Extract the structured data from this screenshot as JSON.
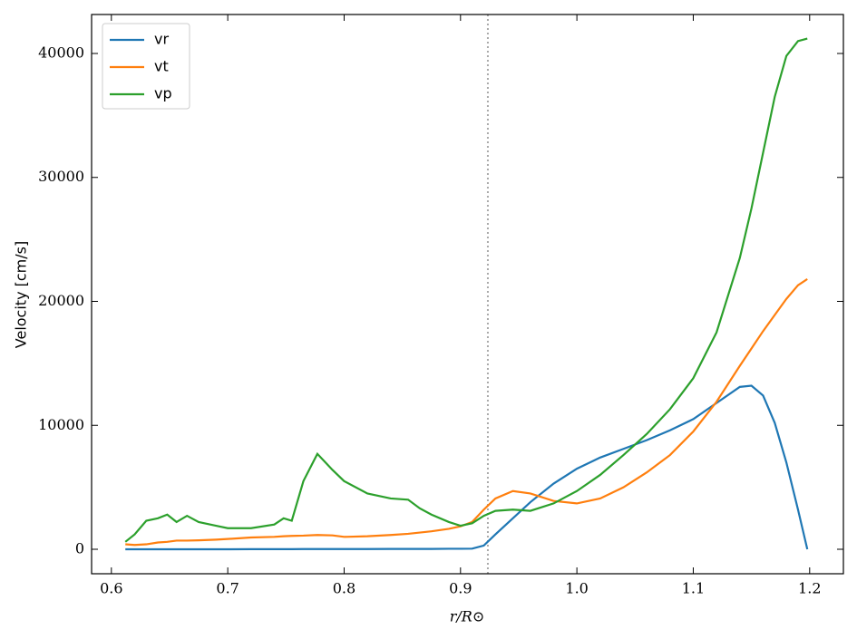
{
  "chart_data": {
    "type": "line",
    "xlabel": "r/R⊙",
    "ylabel": "Velocity [cm/s]",
    "x": [
      0.612,
      0.62,
      0.63,
      0.64,
      0.648,
      0.656,
      0.665,
      0.675,
      0.69,
      0.7,
      0.72,
      0.74,
      0.748,
      0.755,
      0.765,
      0.777,
      0.79,
      0.8,
      0.82,
      0.84,
      0.855,
      0.865,
      0.875,
      0.89,
      0.9,
      0.91,
      0.92,
      0.93,
      0.945,
      0.96,
      0.98,
      1.0,
      1.02,
      1.04,
      1.06,
      1.08,
      1.1,
      1.12,
      1.14,
      1.15,
      1.16,
      1.17,
      1.18,
      1.19,
      1.198
    ],
    "series": [
      {
        "name": "vr",
        "color": "#1f77b4",
        "values": [
          0,
          0,
          0,
          0,
          0,
          0,
          0,
          0,
          0,
          0,
          10,
          10,
          10,
          10,
          20,
          20,
          20,
          20,
          20,
          30,
          30,
          30,
          30,
          40,
          40,
          50,
          300,
          1200,
          2500,
          3800,
          5300,
          6500,
          7400,
          8100,
          8800,
          9600,
          10500,
          11800,
          13100,
          13200,
          12400,
          10200,
          7000,
          3200,
          0
        ]
      },
      {
        "name": "vt",
        "color": "#ff7f0e",
        "values": [
          400,
          350,
          400,
          550,
          600,
          700,
          700,
          720,
          780,
          830,
          950,
          1000,
          1050,
          1080,
          1100,
          1150,
          1120,
          1000,
          1050,
          1150,
          1250,
          1350,
          1450,
          1650,
          1850,
          2200,
          3200,
          4100,
          4700,
          4500,
          3900,
          3700,
          4100,
          5000,
          6200,
          7600,
          9500,
          11900,
          14800,
          16200,
          17600,
          18900,
          20200,
          21300,
          21800
        ]
      },
      {
        "name": "vp",
        "color": "#2ca02c",
        "values": [
          600,
          1200,
          2300,
          2500,
          2800,
          2200,
          2700,
          2200,
          1900,
          1700,
          1700,
          2000,
          2500,
          2300,
          5500,
          7700,
          6400,
          5500,
          4500,
          4100,
          4000,
          3300,
          2800,
          2200,
          1900,
          2100,
          2700,
          3100,
          3200,
          3100,
          3700,
          4700,
          6000,
          7600,
          9300,
          11300,
          13800,
          17500,
          23500,
          27500,
          32000,
          36500,
          39800,
          41000,
          41200
        ]
      }
    ],
    "vline_x": 0.9235,
    "xlim": [
      0.583,
      1.229
    ],
    "ylim": [
      -1974,
      43144
    ],
    "xticks": [
      0.6,
      0.7,
      0.8,
      0.9,
      {
        "value": 1,
        "label": "1.0"
      },
      1.1,
      1.2
    ],
    "yticks": [
      0,
      10000,
      20000,
      30000,
      40000
    ],
    "legend": "upper left"
  }
}
